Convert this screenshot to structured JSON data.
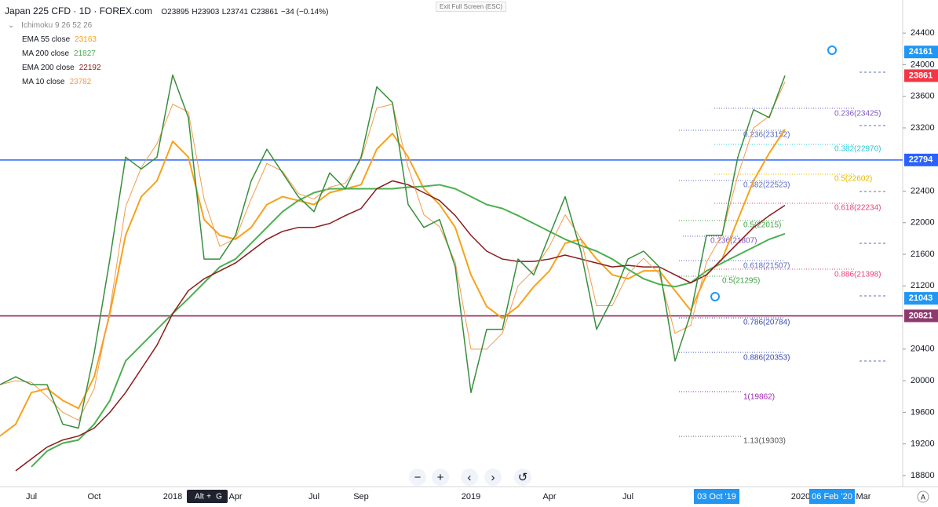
{
  "chart_data": {
    "type": "line",
    "title": "Japan 225 CFD · 1D · FOREX.com",
    "quote": [
      "O23895",
      "H23903",
      "L23741",
      "C23861",
      "−34 (−0.14%)"
    ],
    "top_notice": "Exit Full Screen (ESC)",
    "study_legend": "Ichimoku 9 26 52 26",
    "categories": [
      null,
      null,
      "Jul",
      null,
      null,
      null,
      "Oct",
      null,
      null,
      null,
      null,
      "2018",
      null,
      null,
      null,
      "Apr",
      null,
      null,
      null,
      null,
      "Jul",
      null,
      null,
      "Sep",
      null,
      null,
      null,
      null,
      null,
      null,
      "2019",
      null,
      null,
      null,
      null,
      "Apr",
      null,
      null,
      null,
      null,
      "Jul",
      null,
      null,
      null,
      null,
      null,
      null,
      null,
      null,
      null,
      null,
      "2020",
      null,
      null,
      null,
      "Mar"
    ],
    "values": [
      19950,
      20050,
      19950,
      19950,
      19450,
      19400,
      20350,
      21540,
      22830,
      22680,
      22830,
      23870,
      23330,
      21540,
      21540,
      21840,
      22530,
      22930,
      22630,
      22330,
      22140,
      22630,
      22430,
      22830,
      23720,
      23520,
      22230,
      21940,
      22040,
      21440,
      19850,
      20650,
      20650,
      21540,
      21340,
      21840,
      22330,
      21640,
      20650,
      21040,
      21540,
      21640,
      21440,
      20250,
      20850,
      21840,
      21840,
      22830,
      23430,
      23330,
      23861,
      null,
      null,
      null,
      null,
      null
    ],
    "color": "#388e3c",
    "series": [
      {
        "name": "EMA 55 close",
        "legend_value": 23163,
        "color": "#f7a21b",
        "width": 2,
        "values": [
          19300,
          19450,
          19850,
          19900,
          19750,
          19650,
          20050,
          20850,
          21840,
          22330,
          22530,
          23030,
          22830,
          22040,
          21840,
          21790,
          21940,
          22230,
          22330,
          22280,
          22230,
          22380,
          22430,
          22480,
          22930,
          23130,
          22830,
          22430,
          22230,
          21940,
          21340,
          20940,
          20790,
          20940,
          21190,
          21390,
          21740,
          21790,
          21540,
          21340,
          21290,
          21390,
          21390,
          21140,
          20890,
          21340,
          21540,
          22040,
          22530,
          22880,
          23180,
          null,
          null,
          null,
          null,
          null
        ]
      },
      {
        "name": "MA 200 close",
        "legend_value": 21827,
        "color": "#4caf50",
        "width": 2,
        "values": [
          null,
          null,
          18910,
          19110,
          19210,
          19250,
          19450,
          19750,
          20250,
          20450,
          20650,
          20850,
          21040,
          21240,
          21440,
          21540,
          21740,
          21940,
          22140,
          22280,
          22380,
          22430,
          22430,
          22430,
          22430,
          22430,
          22450,
          22460,
          22480,
          22430,
          22330,
          22230,
          22180,
          22090,
          21990,
          21890,
          21790,
          21710,
          21640,
          21540,
          21410,
          21290,
          21220,
          21190,
          21240,
          21390,
          21490,
          21590,
          21690,
          21790,
          21860,
          null,
          null,
          null,
          null,
          null
        ]
      },
      {
        "name": "EMA 200 close",
        "legend_value": 22192,
        "color": "#8b1a1a",
        "width": 1.5,
        "values": [
          null,
          18860,
          19010,
          19160,
          19250,
          19300,
          19400,
          19600,
          19850,
          20150,
          20450,
          20850,
          21140,
          21290,
          21390,
          21490,
          21640,
          21790,
          21890,
          21940,
          21940,
          21990,
          22090,
          22180,
          22430,
          22530,
          22480,
          22380,
          22280,
          22090,
          21840,
          21640,
          21540,
          21510,
          21510,
          21540,
          21590,
          21540,
          21490,
          21440,
          21460,
          21440,
          21440,
          21340,
          21240,
          21340,
          21540,
          21740,
          21940,
          22090,
          22220,
          null,
          null,
          null,
          null,
          null
        ]
      },
      {
        "name": "MA 10 close",
        "legend_value": 23782,
        "color": "#f39c4a",
        "width": 1,
        "values": [
          19950,
          20000,
          19980,
          19800,
          19600,
          19500,
          19900,
          20900,
          22200,
          22700,
          23000,
          23500,
          23400,
          22300,
          21700,
          21800,
          22300,
          22750,
          22650,
          22370,
          22300,
          22450,
          22500,
          22800,
          23450,
          23500,
          22700,
          22100,
          21950,
          21500,
          20400,
          20400,
          20600,
          21200,
          21400,
          21700,
          22100,
          21800,
          20950,
          20950,
          21350,
          21550,
          21350,
          20600,
          20700,
          21500,
          21850,
          22600,
          23200,
          23350,
          23782,
          null,
          null,
          null,
          null,
          null
        ]
      }
    ],
    "ylim": [
      18660,
      24620
    ],
    "yticks": [
      24400,
      24000,
      23600,
      23200,
      22400,
      22000,
      21600,
      21200,
      20400,
      20000,
      19600,
      19200,
      18800
    ],
    "hlines": [
      {
        "value": 22794,
        "color": "#2962ff"
      },
      {
        "value": 20821,
        "color": "#880e4f"
      }
    ],
    "price_labels": [
      {
        "value": 24161,
        "color": "#2196f3"
      },
      {
        "value": 23861,
        "color": "#f23645"
      },
      {
        "value": 22794,
        "color": "#2962ff"
      },
      {
        "value": 21043,
        "color": "#2196f3"
      },
      {
        "value": 20821,
        "color": "#8e3a6e"
      }
    ],
    "fib_labels": [
      {
        "text": "0.236(23425)",
        "color": "#7e57c2"
      },
      {
        "text": "0.382(22970)",
        "color": "#26c6da"
      },
      {
        "text": "0.5(22602)",
        "color": "#e6b800"
      },
      {
        "text": "0.618(22234)",
        "color": "#ec407a"
      },
      {
        "text": "0.886(21398)",
        "color": "#ec407a"
      },
      {
        "text": "0.236(23152)",
        "color": "#5c6bc0"
      },
      {
        "text": "0.382(22523)",
        "color": "#5c6bc0"
      },
      {
        "text": "0.5(22015)",
        "color": "#43a047"
      },
      {
        "text": "0.236(21807)",
        "color": "#7e57c2"
      },
      {
        "text": "0.618(21507)",
        "color": "#5c6bc0"
      },
      {
        "text": "0.5(21295)",
        "color": "#43a047"
      },
      {
        "text": "0.786(20784)",
        "color": "#3949ab"
      },
      {
        "text": "0.886(20353)",
        "color": "#3949ab"
      },
      {
        "text": "1(19862)",
        "color": "#9c27b0"
      },
      {
        "text": "1.13(19303)",
        "color": "#555555"
      }
    ],
    "crosshair_labels": [
      "03 Oct '19",
      "06 Feb '20"
    ],
    "shortcut": [
      "Alt",
      "+",
      "G"
    ]
  }
}
